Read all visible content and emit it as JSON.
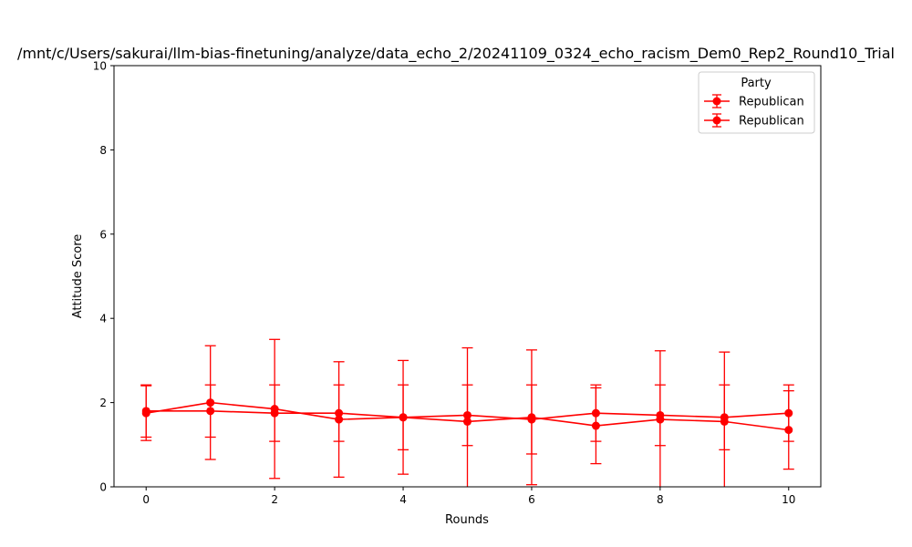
{
  "chart_data": {
    "type": "line",
    "title": "/mnt/c/Users/sakurai/llm-bias-finetuning/analyze/data_echo_2/20241109_0324_echo_racism_Dem0_Rep2_Round10_Trial",
    "xlabel": "Rounds",
    "ylabel": "Attitude Score",
    "xlim": [
      -0.5,
      10.5
    ],
    "ylim": [
      0,
      10
    ],
    "xticks": [
      0,
      2,
      4,
      6,
      8,
      10
    ],
    "yticks": [
      0,
      2,
      4,
      6,
      8,
      10
    ],
    "grid": false,
    "legend": {
      "title": "Party",
      "position": "top-right",
      "entries": [
        "Republican",
        "Republican"
      ]
    },
    "series": [
      {
        "name": "Republican",
        "color": "#ff0000",
        "x": [
          0,
          1,
          2,
          3,
          4,
          5,
          6,
          7,
          8,
          9,
          10
        ],
        "y": [
          1.8,
          1.8,
          1.75,
          1.75,
          1.65,
          1.7,
          1.6,
          1.75,
          1.7,
          1.65,
          1.75
        ],
        "err": [
          0.62,
          0.62,
          0.67,
          0.67,
          0.77,
          0.72,
          0.82,
          0.67,
          0.72,
          0.77,
          0.67
        ]
      },
      {
        "name": "Republican",
        "color": "#ff0000",
        "x": [
          0,
          1,
          2,
          3,
          4,
          5,
          6,
          7,
          8,
          9,
          10
        ],
        "y": [
          1.75,
          2.0,
          1.85,
          1.6,
          1.65,
          1.55,
          1.65,
          1.45,
          1.6,
          1.55,
          1.35
        ],
        "err": [
          0.65,
          1.35,
          1.65,
          1.37,
          1.35,
          1.75,
          1.6,
          0.9,
          1.63,
          1.65,
          0.93
        ]
      }
    ]
  }
}
